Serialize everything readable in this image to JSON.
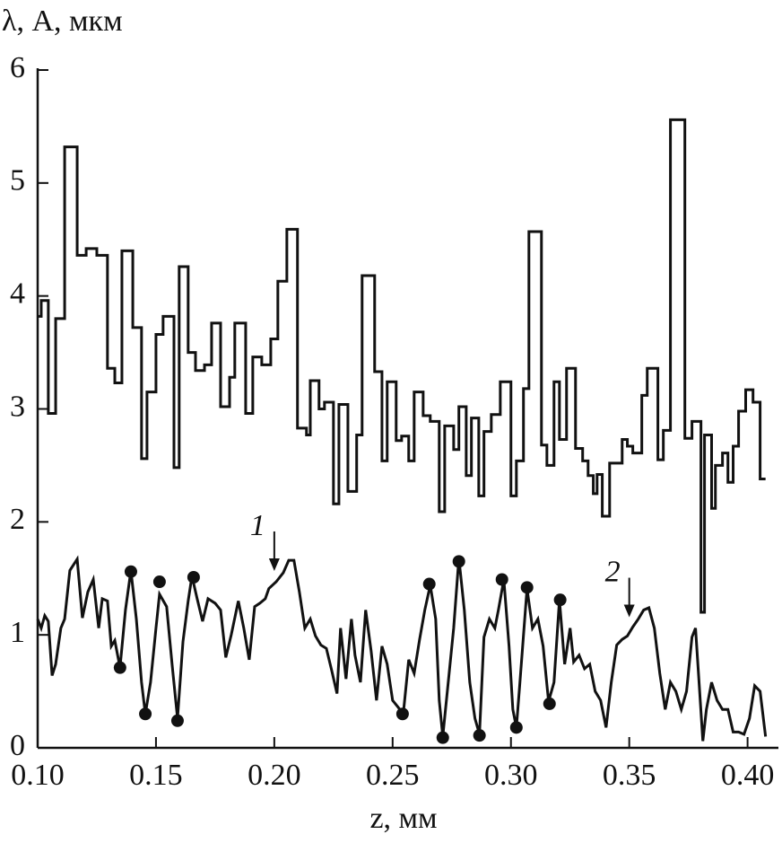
{
  "chart_data": {
    "type": "line",
    "y_label": "λ, A, мкм",
    "x_label": "z, мм",
    "xlim": [
      0.1,
      0.41
    ],
    "ylim": [
      0,
      6
    ],
    "xticks": [
      {
        "value": 0.1,
        "label": "0.10"
      },
      0.15,
      {
        "value": 0.2,
        "label": "0.20"
      },
      0.25,
      {
        "value": 0.3,
        "label": "0.30"
      },
      0.35,
      {
        "value": 0.4,
        "label": "0.40"
      }
    ],
    "yticks": [
      0,
      1,
      2,
      3,
      4,
      5,
      6
    ],
    "grid": false,
    "series": [
      {
        "style": "step",
        "color": "#111111",
        "x": [
          0.1,
          0.1015,
          0.1045,
          0.1076,
          0.1114,
          0.1167,
          0.1205,
          0.125,
          0.1295,
          0.1326,
          0.1356,
          0.1402,
          0.1439,
          0.1462,
          0.15,
          0.153,
          0.1576,
          0.1598,
          0.1636,
          0.1667,
          0.1705,
          0.1735,
          0.1773,
          0.1811,
          0.1833,
          0.1879,
          0.1909,
          0.1947,
          0.1985,
          0.2015,
          0.2053,
          0.2098,
          0.2136,
          0.2152,
          0.2189,
          0.2212,
          0.225,
          0.2273,
          0.2311,
          0.2348,
          0.2371,
          0.2424,
          0.2455,
          0.2477,
          0.2515,
          0.2538,
          0.2568,
          0.2591,
          0.2629,
          0.2659,
          0.2697,
          0.272,
          0.2758,
          0.278,
          0.2811,
          0.2833,
          0.2864,
          0.2886,
          0.2917,
          0.2955,
          0.3,
          0.3023,
          0.3053,
          0.3076,
          0.3129,
          0.3152,
          0.3182,
          0.3205,
          0.3235,
          0.3273,
          0.3303,
          0.3326,
          0.3348,
          0.3364,
          0.3386,
          0.3417,
          0.347,
          0.3492,
          0.3515,
          0.3553,
          0.3576,
          0.3621,
          0.3644,
          0.3674,
          0.3735,
          0.3765,
          0.3803,
          0.3818,
          0.3848,
          0.3864,
          0.3894,
          0.3917,
          0.3939,
          0.3962,
          0.3992,
          0.4023,
          0.4053,
          0.4076
        ],
        "values": [
          3.82,
          3.96,
          2.96,
          3.8,
          5.32,
          4.36,
          4.42,
          4.36,
          3.36,
          3.23,
          4.4,
          3.72,
          2.56,
          3.15,
          3.66,
          3.82,
          2.48,
          4.26,
          3.5,
          3.34,
          3.39,
          3.76,
          3.02,
          3.28,
          3.76,
          2.96,
          3.46,
          3.39,
          3.62,
          4.13,
          4.59,
          2.83,
          2.77,
          3.25,
          3.0,
          3.06,
          2.16,
          3.04,
          2.27,
          2.77,
          4.18,
          3.33,
          2.54,
          3.24,
          2.72,
          2.76,
          2.54,
          3.15,
          2.94,
          2.89,
          2.09,
          2.85,
          2.64,
          3.02,
          2.41,
          2.92,
          2.23,
          2.8,
          2.95,
          3.24,
          2.23,
          2.54,
          3.18,
          4.57,
          2.68,
          2.5,
          3.24,
          2.73,
          3.36,
          2.65,
          2.54,
          2.41,
          2.25,
          2.42,
          2.05,
          2.52,
          2.73,
          2.67,
          2.61,
          3.12,
          3.36,
          2.55,
          2.81,
          5.56,
          2.74,
          2.89,
          1.2,
          2.77,
          2.12,
          2.5,
          2.61,
          2.35,
          2.67,
          2.98,
          3.17,
          3.06,
          2.38,
          2.38
        ]
      },
      {
        "style": "line",
        "color": "#111111",
        "x": [
          0.1,
          0.1015,
          0.103,
          0.1045,
          0.1061,
          0.1076,
          0.1098,
          0.1114,
          0.1136,
          0.1167,
          0.1189,
          0.1212,
          0.1235,
          0.1258,
          0.1273,
          0.1295,
          0.1311,
          0.1326,
          0.1348,
          0.1371,
          0.1394,
          0.1417,
          0.1439,
          0.1455,
          0.1477,
          0.15,
          0.1515,
          0.1545,
          0.1568,
          0.1591,
          0.1614,
          0.1636,
          0.1652,
          0.1674,
          0.1697,
          0.172,
          0.175,
          0.1773,
          0.1795,
          0.1818,
          0.1848,
          0.1871,
          0.1894,
          0.1917,
          0.1939,
          0.1962,
          0.1977,
          0.2008,
          0.2038,
          0.2061,
          0.2083,
          0.2106,
          0.2129,
          0.2152,
          0.2174,
          0.2197,
          0.222,
          0.2242,
          0.2265,
          0.228,
          0.2303,
          0.2326,
          0.2341,
          0.2364,
          0.2386,
          0.2409,
          0.2432,
          0.2455,
          0.2477,
          0.25,
          0.2523,
          0.2545,
          0.2568,
          0.2591,
          0.2614,
          0.2636,
          0.2659,
          0.2682,
          0.2697,
          0.2712,
          0.2735,
          0.2758,
          0.278,
          0.2803,
          0.2826,
          0.2848,
          0.2867,
          0.2886,
          0.2909,
          0.2932,
          0.2947,
          0.297,
          0.2992,
          0.3008,
          0.3023,
          0.3038,
          0.3068,
          0.3091,
          0.3114,
          0.3136,
          0.3159,
          0.3182,
          0.3205,
          0.3227,
          0.325,
          0.3265,
          0.3288,
          0.3311,
          0.3333,
          0.3356,
          0.3379,
          0.3402,
          0.3424,
          0.3447,
          0.347,
          0.3492,
          0.3515,
          0.3538,
          0.3561,
          0.3583,
          0.3606,
          0.3629,
          0.3652,
          0.3674,
          0.3697,
          0.372,
          0.3742,
          0.3765,
          0.378,
          0.3795,
          0.3811,
          0.3826,
          0.3848,
          0.3871,
          0.3894,
          0.3917,
          0.3939,
          0.3962,
          0.3985,
          0.4008,
          0.403,
          0.4053,
          0.4076
        ],
        "values": [
          1.14,
          1.06,
          1.17,
          1.12,
          0.64,
          0.74,
          1.06,
          1.14,
          1.57,
          1.67,
          1.15,
          1.38,
          1.49,
          1.06,
          1.32,
          1.3,
          0.9,
          0.95,
          0.71,
          1.22,
          1.57,
          1.14,
          0.58,
          0.3,
          0.58,
          1.06,
          1.36,
          1.25,
          0.74,
          0.26,
          0.94,
          1.3,
          1.52,
          1.32,
          1.12,
          1.32,
          1.28,
          1.22,
          0.8,
          1.0,
          1.3,
          1.06,
          0.78,
          1.25,
          1.28,
          1.32,
          1.41,
          1.47,
          1.55,
          1.66,
          1.66,
          1.38,
          1.06,
          1.14,
          0.99,
          0.91,
          0.88,
          0.69,
          0.48,
          1.06,
          0.61,
          1.14,
          0.82,
          0.58,
          1.22,
          0.86,
          0.42,
          0.9,
          0.74,
          0.42,
          0.36,
          0.3,
          0.78,
          0.66,
          0.96,
          1.22,
          1.44,
          1.14,
          0.42,
          0.1,
          0.58,
          1.06,
          1.68,
          1.22,
          0.58,
          0.26,
          0.12,
          0.98,
          1.14,
          1.06,
          1.22,
          1.49,
          0.9,
          0.34,
          0.18,
          0.58,
          1.41,
          1.06,
          1.14,
          0.9,
          0.41,
          0.58,
          1.31,
          0.74,
          1.06,
          0.76,
          0.82,
          0.7,
          0.74,
          0.5,
          0.42,
          0.18,
          0.58,
          0.91,
          0.96,
          0.99,
          1.07,
          1.14,
          1.22,
          1.24,
          1.06,
          0.66,
          0.34,
          0.58,
          0.5,
          0.34,
          0.5,
          0.98,
          1.06,
          0.58,
          0.06,
          0.34,
          0.58,
          0.42,
          0.34,
          0.34,
          0.14,
          0.14,
          0.12,
          0.26,
          0.55,
          0.5,
          0.1
        ]
      },
      {
        "style": "markers",
        "color": "#111111",
        "x": [
          0.1348,
          0.1394,
          0.1455,
          0.1515,
          0.1591,
          0.1659,
          0.2542,
          0.2655,
          0.2712,
          0.278,
          0.2867,
          0.2962,
          0.3023,
          0.3068,
          0.3163,
          0.3208
        ],
        "values": [
          0.71,
          1.56,
          0.3,
          1.47,
          0.24,
          1.51,
          0.3,
          1.45,
          0.09,
          1.65,
          0.11,
          1.49,
          0.18,
          1.42,
          0.39,
          1.31
        ]
      }
    ],
    "annotations": [
      {
        "text": "1",
        "x": 0.2,
        "y": 1.55
      },
      {
        "text": "2",
        "x": 0.35,
        "y": 1.14
      }
    ]
  }
}
